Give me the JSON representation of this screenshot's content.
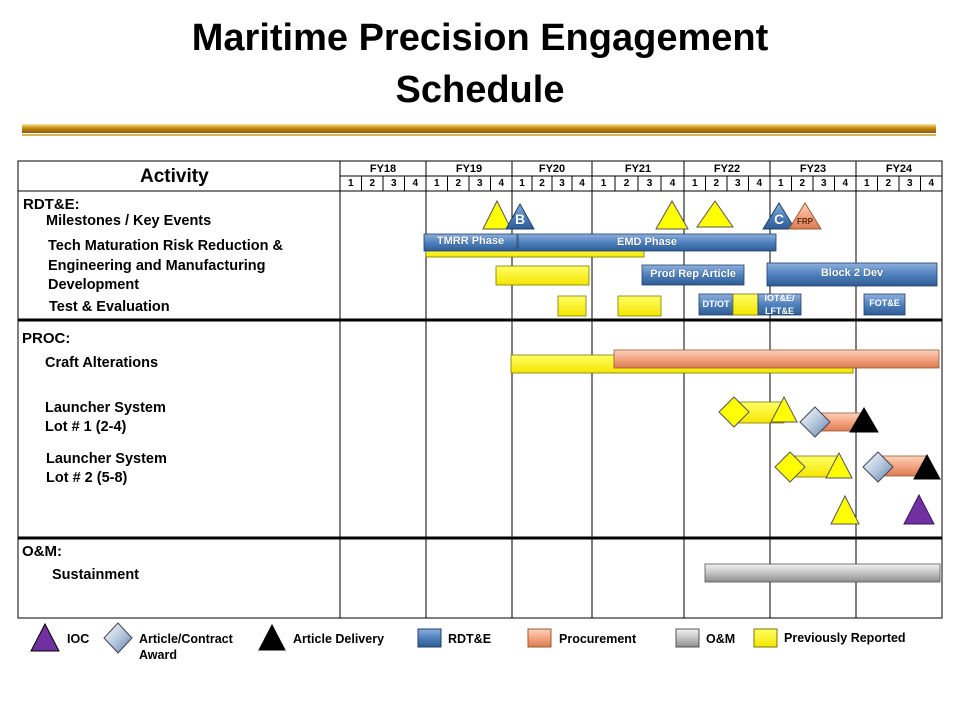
{
  "title": {
    "line1": "Maritime Precision Engagement",
    "line2": "Schedule"
  },
  "table": {
    "activity_header": "Activity",
    "fiscal_years": [
      "FY18",
      "FY19",
      "FY20",
      "FY21",
      "FY22",
      "FY23",
      "FY24"
    ],
    "quarters": [
      "1",
      "2",
      "3",
      "4"
    ]
  },
  "sections": {
    "rdte": "RDT&E:",
    "proc": "PROC:",
    "om": "O&M:"
  },
  "rows": {
    "milestones": "Milestones / Key Events",
    "tech_line1": "Tech Maturation Risk Reduction &",
    "tech_line2": "Engineering and Manufacturing",
    "tech_line3": "Development",
    "test_eval": "Test & Evaluation",
    "craft": "Craft Alterations",
    "lot1_line1": "Launcher System",
    "lot1_line2": "Lot # 1 (2-4)",
    "lot2_line1": "Launcher System",
    "lot2_line2": "Lot # 2 (5-8)",
    "sustainment": "Sustainment"
  },
  "milestone_labels": {
    "b": "B",
    "c": "C",
    "frp": "FRP"
  },
  "bar_labels": {
    "tmrr": "TMRR Phase",
    "emd": "EMD Phase",
    "prod_rep": "Prod Rep Article",
    "block2": "Block 2 Dev",
    "dtot": "DT/OT",
    "iote_line1": "IOT&E/",
    "iote_line2": "LFT&E",
    "fote": "FOT&E"
  },
  "legend": {
    "ioc": "IOC",
    "award_line1": "Article/Contract",
    "award_line2": "Award",
    "delivery": "Article Delivery",
    "rdte": "RDT&E",
    "procurement": "Procurement",
    "om": "O&M",
    "previous": "Previously Reported"
  },
  "colors": {
    "rdte": "#4f81bd",
    "procurement": "#f4a582",
    "om": "#bfbfbf",
    "previously_reported": "#ffff00",
    "ioc": "#7030a0",
    "delivery": "#000000"
  }
}
